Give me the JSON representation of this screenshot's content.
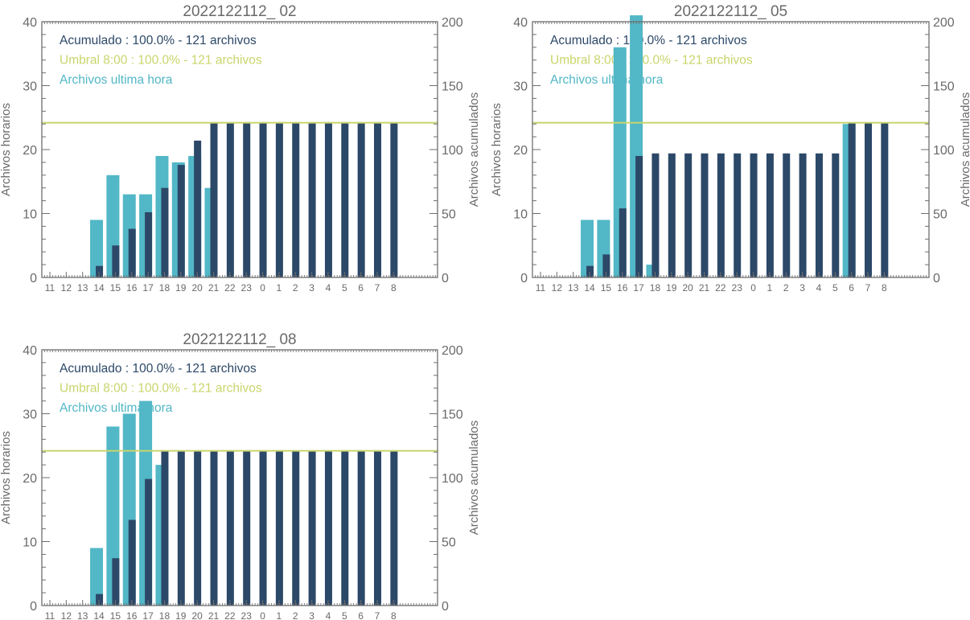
{
  "colors": {
    "cumulative": "#2c4868",
    "hourly": "#52b7c6",
    "threshold": "#c9d56b",
    "axis": "#6e6e6e",
    "text": "#6a6a6a"
  },
  "chart_data": [
    {
      "type": "bar",
      "title": "2022122112_ 02",
      "categories": [
        "11",
        "12",
        "13",
        "14",
        "15",
        "16",
        "17",
        "18",
        "19",
        "20",
        "21",
        "22",
        "23",
        "0",
        "1",
        "2",
        "3",
        "4",
        "5",
        "6",
        "7",
        "8"
      ],
      "series": [
        {
          "name": "Archivos ultima hora",
          "axis": "left",
          "values": [
            0,
            0,
            0,
            9,
            16,
            13,
            13,
            19,
            18,
            19,
            14,
            0,
            0,
            0,
            0,
            0,
            0,
            0,
            0,
            0,
            0,
            0
          ]
        },
        {
          "name": "Acumulado",
          "axis": "right",
          "values": [
            0,
            0,
            0,
            9,
            25,
            38,
            51,
            70,
            88,
            107,
            121,
            121,
            121,
            121,
            121,
            121,
            121,
            121,
            121,
            121,
            121,
            121
          ]
        }
      ],
      "threshold": {
        "name": "Umbral 8:00",
        "value": 121,
        "axis": "right"
      },
      "legend": [
        {
          "text": "Acumulado : 100.0% - 121 archivos",
          "series": "cumulative"
        },
        {
          "text": "Umbral 8:00 : 100.0% - 121 archivos",
          "series": "threshold"
        },
        {
          "text": "Archivos ultima hora",
          "series": "hourly"
        }
      ],
      "legend_position": "top-left",
      "ylabel": "Archivos horarios",
      "y2label": "Archivos acumulados",
      "ylim": [
        0,
        40
      ],
      "y2lim": [
        0,
        200
      ],
      "yticks": [
        "0",
        "10",
        "20",
        "30",
        "40"
      ],
      "y2ticks": [
        "0",
        "50",
        "100",
        "150",
        "200"
      ],
      "grid": false
    },
    {
      "type": "bar",
      "title": "2022122112_ 05",
      "categories": [
        "11",
        "12",
        "13",
        "14",
        "15",
        "16",
        "17",
        "18",
        "19",
        "20",
        "21",
        "22",
        "23",
        "0",
        "1",
        "2",
        "3",
        "4",
        "5",
        "6",
        "7",
        "8"
      ],
      "series": [
        {
          "name": "Archivos ultima hora",
          "axis": "left",
          "values": [
            0,
            0,
            0,
            9,
            9,
            36,
            41,
            2,
            0,
            0,
            0,
            0,
            0,
            0,
            0,
            0,
            0,
            0,
            0,
            24,
            0,
            0
          ]
        },
        {
          "name": "Acumulado",
          "axis": "right",
          "values": [
            0,
            0,
            0,
            9,
            18,
            54,
            95,
            97,
            97,
            97,
            97,
            97,
            97,
            97,
            97,
            97,
            97,
            97,
            97,
            121,
            121,
            121
          ]
        }
      ],
      "threshold": {
        "name": "Umbral 8:00",
        "value": 121,
        "axis": "right"
      },
      "legend": [
        {
          "text": "Acumulado : 100.0% - 121 archivos",
          "series": "cumulative"
        },
        {
          "text": "Umbral 8:00 : 100.0% - 121 archivos",
          "series": "threshold"
        },
        {
          "text": "Archivos ultima hora",
          "series": "hourly"
        }
      ],
      "legend_position": "top-left",
      "ylabel": "Archivos horarios",
      "y2label": "Archivos acumulados",
      "ylim": [
        0,
        40
      ],
      "y2lim": [
        0,
        200
      ],
      "yticks": [
        "0",
        "10",
        "20",
        "30",
        "40"
      ],
      "y2ticks": [
        "0",
        "50",
        "100",
        "150",
        "200"
      ],
      "grid": false
    },
    {
      "type": "bar",
      "title": "2022122112_ 08",
      "categories": [
        "11",
        "12",
        "13",
        "14",
        "15",
        "16",
        "17",
        "18",
        "19",
        "20",
        "21",
        "22",
        "23",
        "0",
        "1",
        "2",
        "3",
        "4",
        "5",
        "6",
        "7",
        "8"
      ],
      "series": [
        {
          "name": "Archivos ultima hora",
          "axis": "left",
          "values": [
            0,
            0,
            0,
            9,
            28,
            30,
            32,
            22,
            0,
            0,
            0,
            0,
            0,
            0,
            0,
            0,
            0,
            0,
            0,
            0,
            0,
            0
          ]
        },
        {
          "name": "Acumulado",
          "axis": "right",
          "values": [
            0,
            0,
            0,
            9,
            37,
            67,
            99,
            121,
            121,
            121,
            121,
            121,
            121,
            121,
            121,
            121,
            121,
            121,
            121,
            121,
            121,
            121
          ]
        }
      ],
      "threshold": {
        "name": "Umbral 8:00",
        "value": 121,
        "axis": "right"
      },
      "legend": [
        {
          "text": "Acumulado : 100.0% - 121 archivos",
          "series": "cumulative"
        },
        {
          "text": "Umbral 8:00 : 100.0% - 121 archivos",
          "series": "threshold"
        },
        {
          "text": "Archivos ultima hora",
          "series": "hourly"
        }
      ],
      "legend_position": "top-left",
      "ylabel": "Archivos horarios",
      "y2label": "Archivos acumulados",
      "ylim": [
        0,
        40
      ],
      "y2lim": [
        0,
        200
      ],
      "yticks": [
        "0",
        "10",
        "20",
        "30",
        "40"
      ],
      "y2ticks": [
        "0",
        "50",
        "100",
        "150",
        "200"
      ],
      "grid": false
    }
  ]
}
